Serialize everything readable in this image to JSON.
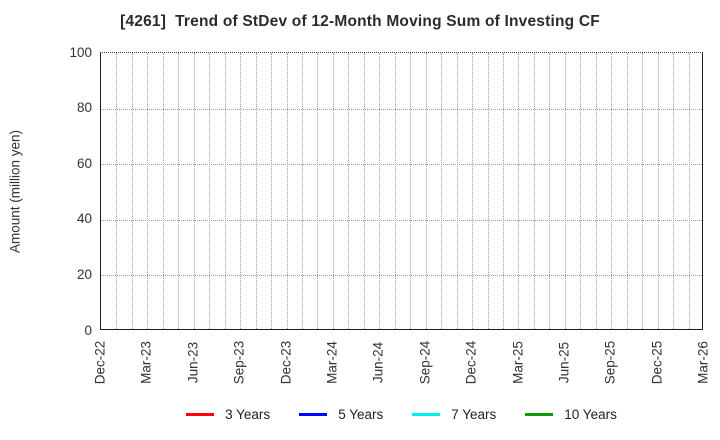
{
  "chart_data": {
    "type": "line",
    "title": "[4261]  Trend of StDev of 12-Month Moving Sum of Investing CF",
    "ylabel": "Amount (million yen)",
    "ylim": [
      0,
      100
    ],
    "yticks": [
      0,
      20,
      40,
      60,
      80,
      100
    ],
    "x_tick_labels": [
      "Dec-22",
      "Mar-23",
      "Jun-23",
      "Sep-23",
      "Dec-23",
      "Mar-24",
      "Jun-24",
      "Sep-24",
      "Dec-24",
      "Mar-25",
      "Jun-25",
      "Sep-25",
      "Dec-25",
      "Mar-26"
    ],
    "x_months_total": 39,
    "x_minor_per_major": 3,
    "grid": true,
    "legend_position": "bottom",
    "series": [
      {
        "name": "3 Years",
        "color": "#ff0000",
        "values": []
      },
      {
        "name": "5 Years",
        "color": "#0000ff",
        "values": []
      },
      {
        "name": "7 Years",
        "color": "#00eeee",
        "values": []
      },
      {
        "name": "10 Years",
        "color": "#0c9a0c",
        "values": []
      }
    ]
  }
}
